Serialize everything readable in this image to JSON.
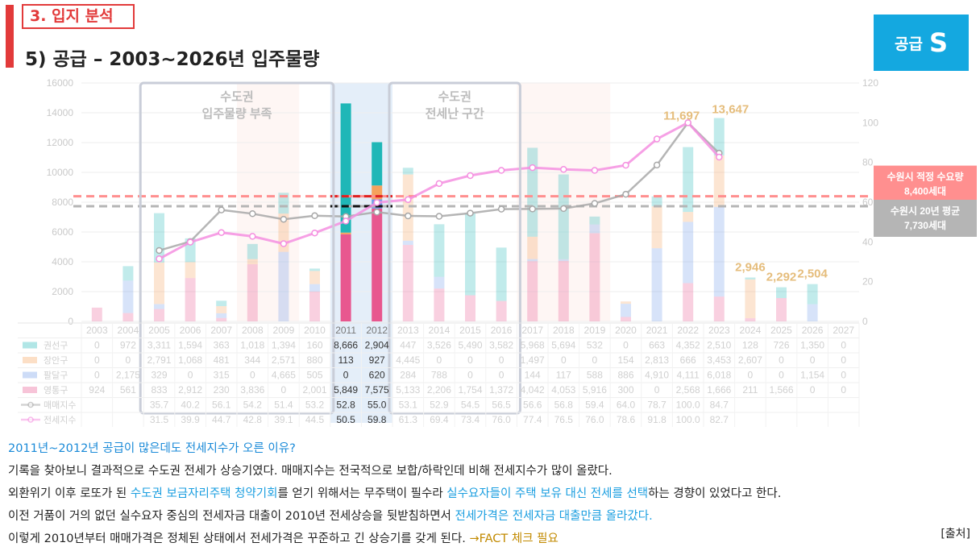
{
  "header": {
    "section_label": "3. 입지 분석",
    "title": "5) 공급 – 2003~2026년 입주물량",
    "badge_text": "공급",
    "badge_letter": "S"
  },
  "chart_data": {
    "type": "bar",
    "years": [
      "2003",
      "2004",
      "2005",
      "2006",
      "2007",
      "2008",
      "2009",
      "2010",
      "2011",
      "2012",
      "2013",
      "2014",
      "2015",
      "2016",
      "2017",
      "2018",
      "2019",
      "2020",
      "2021",
      "2022",
      "2023",
      "2024",
      "2025",
      "2026",
      "2027"
    ],
    "ylim_left": [
      0,
      16000
    ],
    "yticks_left": [
      "0",
      "2000",
      "4000",
      "6000",
      "8000",
      "10000",
      "12000",
      "14000",
      "16000"
    ],
    "ylim_right": [
      0,
      120
    ],
    "yticks_right": [
      "0",
      "20",
      "40",
      "60",
      "80",
      "100",
      "120"
    ],
    "series": [
      {
        "name": "권선구",
        "color": "#1fb7b7",
        "display": [
          "0",
          "972",
          "3,311",
          "1,594",
          "363",
          "1,018",
          "1,394",
          "160",
          "8,666",
          "2,904",
          "447",
          "3,526",
          "5,490",
          "3,582",
          "5,968",
          "5,694",
          "532",
          "0",
          "663",
          "4,352",
          "2,510",
          "128",
          "726",
          "1,350",
          "0"
        ],
        "values": [
          0,
          972,
          3311,
          1594,
          363,
          1018,
          1394,
          160,
          8666,
          2904,
          447,
          3526,
          5490,
          3582,
          5968,
          5694,
          532,
          0,
          663,
          4352,
          2510,
          128,
          726,
          1350,
          0
        ]
      },
      {
        "name": "장안구",
        "color": "#f5a25d",
        "display": [
          "0",
          "0",
          "2,791",
          "1,068",
          "481",
          "344",
          "2,571",
          "880",
          "113",
          "927",
          "4,445",
          "0",
          "0",
          "0",
          "1,497",
          "0",
          "0",
          "154",
          "2,813",
          "666",
          "3,453",
          "2,607",
          "0",
          "0",
          "0"
        ],
        "values": [
          0,
          0,
          2791,
          1068,
          481,
          344,
          2571,
          880,
          113,
          927,
          4445,
          0,
          0,
          0,
          1497,
          0,
          0,
          154,
          2813,
          666,
          3453,
          2607,
          0,
          0,
          0
        ]
      },
      {
        "name": "팔달구",
        "color": "#6f9be8",
        "display": [
          "0",
          "2,175",
          "329",
          "0",
          "315",
          "0",
          "4,665",
          "505",
          "0",
          "620",
          "284",
          "788",
          "0",
          "0",
          "144",
          "117",
          "588",
          "886",
          "4,910",
          "4,111",
          "6,018",
          "0",
          "0",
          "1,154",
          "0"
        ],
        "values": [
          0,
          2175,
          329,
          0,
          315,
          0,
          4665,
          505,
          0,
          620,
          284,
          788,
          0,
          0,
          144,
          117,
          588,
          886,
          4910,
          4111,
          6018,
          0,
          0,
          1154,
          0
        ]
      },
      {
        "name": "영통구",
        "color": "#e8578f",
        "display": [
          "924",
          "561",
          "833",
          "2,912",
          "230",
          "3,836",
          "0",
          "2,001",
          "5,849",
          "7,575",
          "5,133",
          "2,206",
          "1,754",
          "1,372",
          "4,042",
          "4,053",
          "5,916",
          "300",
          "0",
          "2,568",
          "1,666",
          "211",
          "1,566",
          "0",
          "0"
        ],
        "values": [
          924,
          561,
          833,
          2912,
          230,
          3836,
          0,
          2001,
          5849,
          7575,
          5133,
          2206,
          1754,
          1372,
          4042,
          4053,
          5916,
          300,
          0,
          2568,
          1666,
          211,
          1566,
          0,
          0
        ]
      }
    ],
    "index_series": [
      {
        "name": "매매지수",
        "color": "#a8a8a8",
        "display": [
          "",
          "",
          "35.7",
          "40.2",
          "56.1",
          "54.2",
          "51.4",
          "53.2",
          "52.8",
          "55.0",
          "53.1",
          "52.9",
          "54.5",
          "56.5",
          "56.6",
          "56.8",
          "59.4",
          "64.0",
          "78.7",
          "100.0",
          "84.7",
          "",
          "",
          "",
          ""
        ],
        "values": [
          null,
          null,
          35.7,
          40.2,
          56.1,
          54.2,
          51.4,
          53.2,
          52.8,
          55.0,
          53.1,
          52.9,
          54.5,
          56.5,
          56.6,
          56.8,
          59.4,
          64.0,
          78.7,
          100.0,
          84.7,
          null,
          null,
          null,
          null
        ]
      },
      {
        "name": "전세지수",
        "color": "#f58fe0",
        "display": [
          "",
          "",
          "31.5",
          "39.9",
          "44.7",
          "42.8",
          "39.1",
          "44.5",
          "50.5",
          "59.8",
          "61.3",
          "69.4",
          "73.4",
          "76.0",
          "77.4",
          "76.5",
          "76.0",
          "78.6",
          "91.8",
          "100.0",
          "82.7",
          "",
          "",
          "",
          ""
        ],
        "values": [
          null,
          null,
          31.5,
          39.9,
          44.7,
          42.8,
          39.1,
          44.5,
          50.5,
          59.8,
          61.3,
          69.4,
          73.4,
          76.0,
          77.4,
          76.5,
          76.0,
          78.6,
          91.8,
          100.0,
          82.7,
          null,
          null,
          null,
          null
        ]
      }
    ],
    "bar_labels": [
      {
        "year": "2022",
        "text": "11,697"
      },
      {
        "year": "2023",
        "text": "13,647"
      },
      {
        "year": "2024",
        "text": "2,946"
      },
      {
        "year": "2025",
        "text": "2,292"
      },
      {
        "year": "2026",
        "text": "2,504"
      }
    ],
    "region_labels": [
      {
        "line1": "수도권",
        "line2": "입주물량 부족",
        "from": "2005",
        "to": "2010"
      },
      {
        "line1": "수도권",
        "line2": "전세난 구간",
        "from": "2013",
        "to": "2016"
      }
    ],
    "reference_lines": [
      {
        "name": "적정수요량",
        "value": 8400,
        "color": "#ff8f8f",
        "label_line1": "수원시 적정 수요량",
        "label_line2": "8,400세대"
      },
      {
        "name": "20년평균",
        "value": 7730,
        "color": "#b5b5b5",
        "label_line1": "수원시 20년 평균",
        "label_line2": "7,730세대"
      }
    ],
    "highlight_years": [
      "2011",
      "2012"
    ]
  },
  "body_text": {
    "question": "2011년~2012년  공급이 많은데도 전세지수가 오른 이유?",
    "line1": "기록을 찾아보니 결과적으로 수도권 전세가 상승기였다. 매매지수는 전국적으로 보합/하락인데 비해 전세지수가 많이 올랐다.",
    "line2_a": "외환위기 이후 로또가 된 ",
    "line2_b": "수도권 보금자리주택 청약기회",
    "line2_c": "를 얻기 위해서는 무주택이 필수라 ",
    "line2_d": "실수요자들이 주택 보유 대신 전세를 선택",
    "line2_e": "하는 경향이 있었다고 한다.",
    "line3_a": "이전 거품이 거의 없던 실수요자 중심의 전세자금 대출이 2010년 전세상승을 뒷받침하면서 ",
    "line3_b": "전세가격은 전세자금 대출만큼 올라갔다.",
    "line4_a": "이렇게 2010년부터 매매가격은 정체된 상태에서 전세가격은 꾸준하고 긴 상승기를 갖게 된다. ",
    "line4_b": "→FACT 체크 필요",
    "source": "[출처]"
  }
}
